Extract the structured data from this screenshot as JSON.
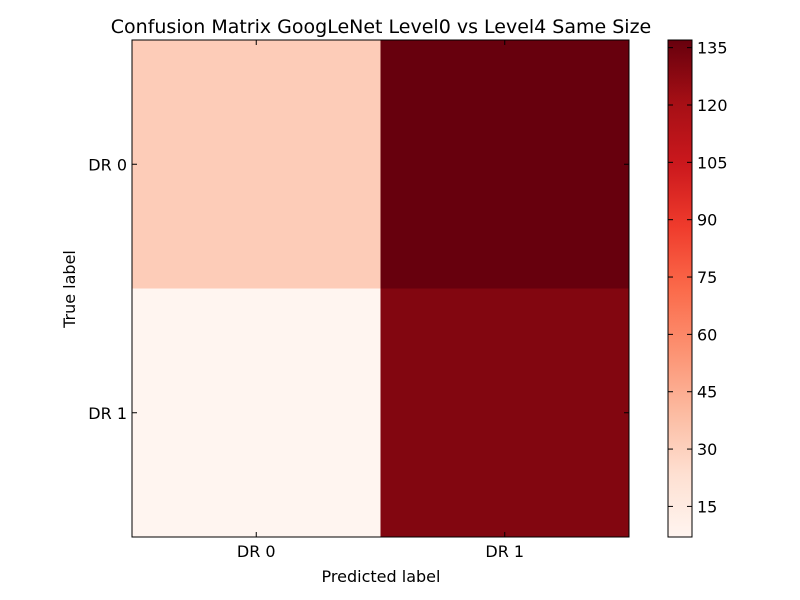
{
  "chart_data": {
    "type": "heatmap",
    "title": "Confusion Matrix GoogLeNet Level0 vs Level4 Same Size",
    "xlabel": "Predicted label",
    "ylabel": "True label",
    "x_categories": [
      "DR 0",
      "DR 1"
    ],
    "y_categories": [
      "DR 0",
      "DR 1"
    ],
    "values": [
      [
        32,
        137
      ],
      [
        7,
        130
      ]
    ],
    "colormap": "Reds",
    "colorbar": {
      "vmin": 7,
      "vmax": 137,
      "ticks": [
        15,
        30,
        45,
        60,
        75,
        90,
        105,
        120,
        135
      ]
    },
    "grid": false
  }
}
